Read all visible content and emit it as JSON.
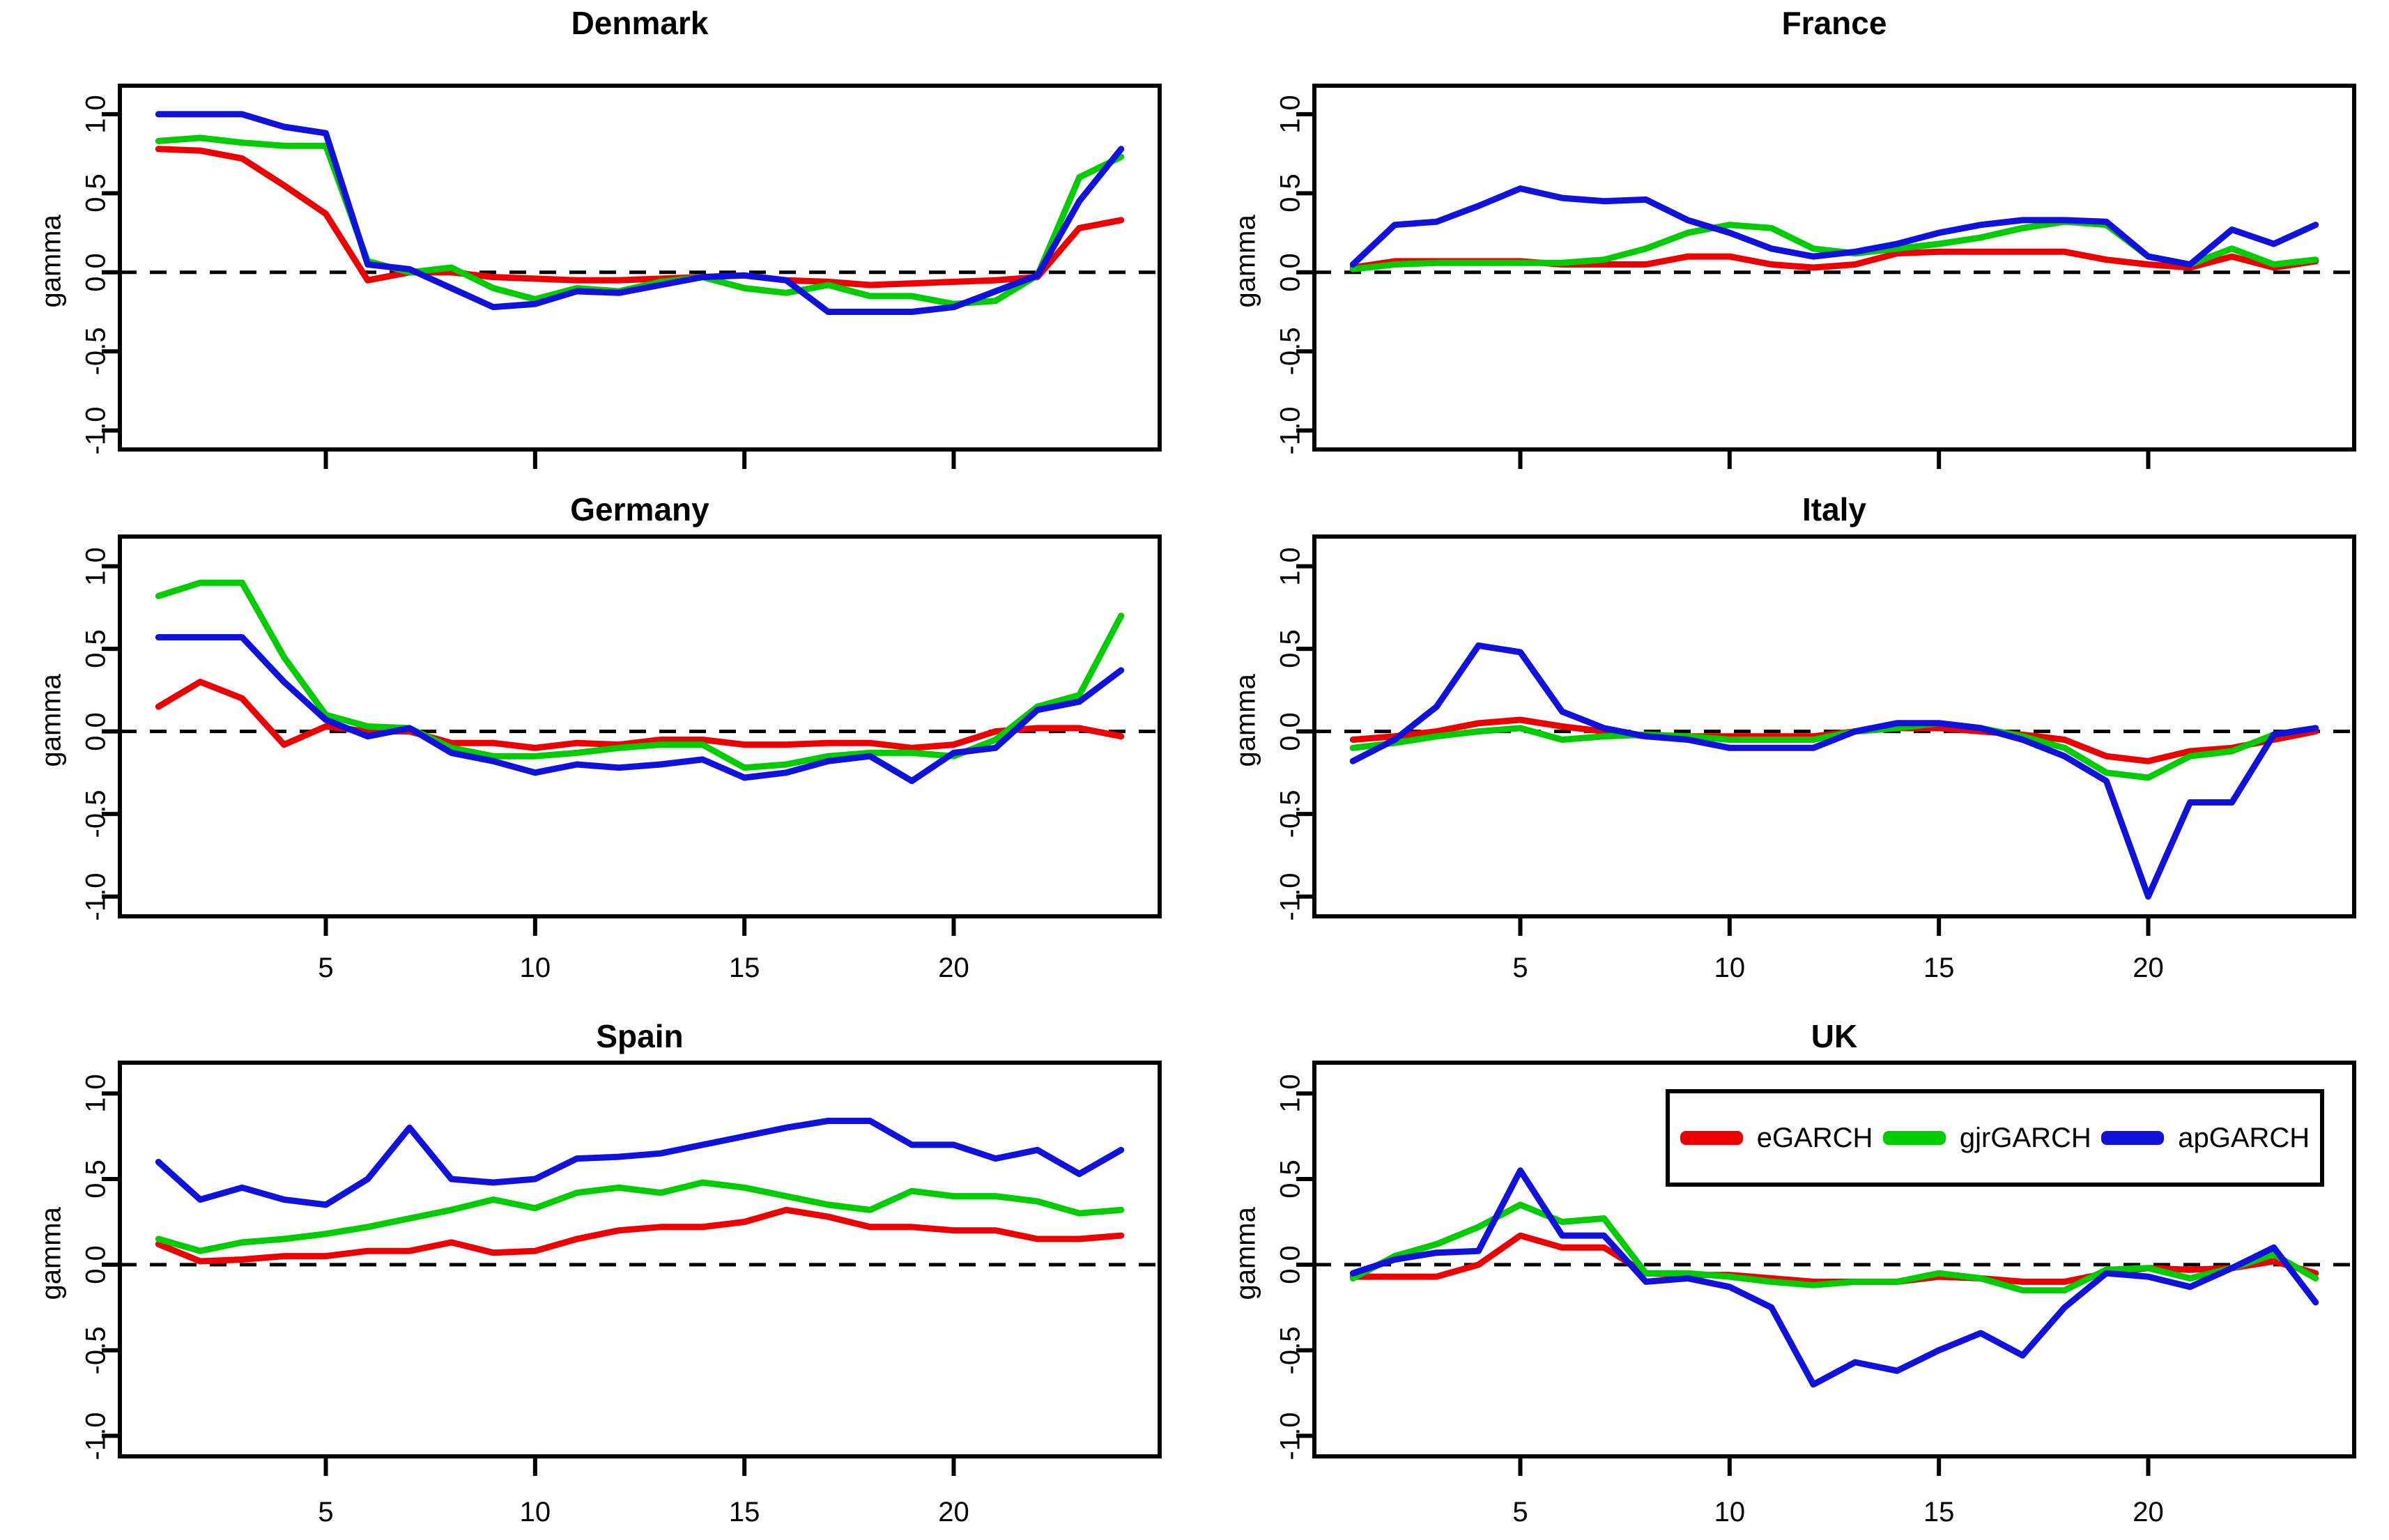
{
  "figure": {
    "ylabel": "gamma",
    "background": "#ffffff",
    "axis_color": "#000000",
    "zero_line_style": "dashed",
    "ytick_labels": [
      "1.0",
      "0.5",
      "0.0",
      "-0.5",
      "-1.0"
    ],
    "yticks": [
      1.0,
      0.5,
      0.0,
      -0.5,
      -1.0
    ],
    "xtick_labels": [
      "5",
      "10",
      "15",
      "20"
    ],
    "xticks": [
      5,
      10,
      15,
      20
    ],
    "colors": {
      "eGARCH": "#ee0000",
      "gjrGARCH": "#00cc00",
      "apGARCH": "#1111dd"
    },
    "legend": {
      "entries": [
        "eGARCH",
        "gjrGARCH",
        "apGARCH"
      ],
      "panel": "UK",
      "position": "top-right"
    }
  },
  "chart_data": [
    {
      "type": "line",
      "title": "Denmark",
      "x": [
        1,
        2,
        3,
        4,
        5,
        6,
        7,
        8,
        9,
        10,
        11,
        12,
        13,
        14,
        15,
        16,
        17,
        18,
        19,
        20,
        21,
        22,
        23,
        24
      ],
      "xlim": [
        1,
        24
      ],
      "ylim": [
        -1,
        1
      ],
      "zero_line": true,
      "x_axis_labels_visible": false,
      "series": [
        {
          "name": "eGARCH",
          "color": "#ee0000",
          "values": [
            0.78,
            0.77,
            0.72,
            0.55,
            0.37,
            -0.05,
            0.0,
            0.0,
            -0.03,
            -0.04,
            -0.05,
            -0.05,
            -0.04,
            -0.03,
            -0.02,
            -0.05,
            -0.06,
            -0.08,
            -0.07,
            -0.06,
            -0.05,
            -0.03,
            0.28,
            0.33
          ]
        },
        {
          "name": "gjrGARCH",
          "color": "#00cc00",
          "values": [
            0.83,
            0.85,
            0.82,
            0.8,
            0.8,
            0.07,
            0.0,
            0.03,
            -0.1,
            -0.17,
            -0.1,
            -0.12,
            -0.06,
            -0.03,
            -0.1,
            -0.13,
            -0.08,
            -0.15,
            -0.15,
            -0.2,
            -0.18,
            -0.02,
            0.6,
            0.73
          ]
        },
        {
          "name": "apGARCH",
          "color": "#1111dd",
          "values": [
            1.0,
            1.0,
            1.0,
            0.92,
            0.88,
            0.05,
            0.02,
            -0.1,
            -0.22,
            -0.2,
            -0.12,
            -0.13,
            -0.08,
            -0.03,
            -0.02,
            -0.05,
            -0.25,
            -0.25,
            -0.25,
            -0.22,
            -0.12,
            -0.02,
            0.45,
            0.78
          ]
        }
      ]
    },
    {
      "type": "line",
      "title": "France",
      "x": [
        1,
        2,
        3,
        4,
        5,
        6,
        7,
        8,
        9,
        10,
        11,
        12,
        13,
        14,
        15,
        16,
        17,
        18,
        19,
        20,
        21,
        22,
        23,
        24
      ],
      "xlim": [
        1,
        24
      ],
      "ylim": [
        -1,
        1
      ],
      "zero_line": true,
      "x_axis_labels_visible": false,
      "series": [
        {
          "name": "eGARCH",
          "color": "#ee0000",
          "values": [
            0.03,
            0.07,
            0.07,
            0.07,
            0.07,
            0.05,
            0.05,
            0.05,
            0.1,
            0.1,
            0.05,
            0.03,
            0.05,
            0.12,
            0.13,
            0.13,
            0.13,
            0.13,
            0.08,
            0.05,
            0.03,
            0.1,
            0.03,
            0.07
          ]
        },
        {
          "name": "gjrGARCH",
          "color": "#00cc00",
          "values": [
            0.02,
            0.05,
            0.06,
            0.06,
            0.06,
            0.06,
            0.08,
            0.15,
            0.25,
            0.3,
            0.28,
            0.15,
            0.12,
            0.15,
            0.18,
            0.22,
            0.28,
            0.32,
            0.3,
            0.1,
            0.05,
            0.15,
            0.05,
            0.08
          ]
        },
        {
          "name": "apGARCH",
          "color": "#1111dd",
          "values": [
            0.05,
            0.3,
            0.32,
            0.42,
            0.53,
            0.47,
            0.45,
            0.46,
            0.33,
            0.25,
            0.15,
            0.1,
            0.13,
            0.18,
            0.25,
            0.3,
            0.33,
            0.33,
            0.32,
            0.1,
            0.05,
            0.27,
            0.18,
            0.3
          ]
        }
      ]
    },
    {
      "type": "line",
      "title": "Germany",
      "x": [
        1,
        2,
        3,
        4,
        5,
        6,
        7,
        8,
        9,
        10,
        11,
        12,
        13,
        14,
        15,
        16,
        17,
        18,
        19,
        20,
        21,
        22,
        23,
        24
      ],
      "xlim": [
        1,
        24
      ],
      "ylim": [
        -1,
        1
      ],
      "zero_line": true,
      "x_axis_labels_visible": true,
      "series": [
        {
          "name": "eGARCH",
          "color": "#ee0000",
          "values": [
            0.15,
            0.3,
            0.2,
            -0.08,
            0.03,
            0.0,
            0.0,
            -0.07,
            -0.07,
            -0.1,
            -0.07,
            -0.08,
            -0.05,
            -0.05,
            -0.08,
            -0.08,
            -0.07,
            -0.07,
            -0.1,
            -0.08,
            0.0,
            0.02,
            0.02,
            -0.03
          ]
        },
        {
          "name": "gjrGARCH",
          "color": "#00cc00",
          "values": [
            0.82,
            0.9,
            0.9,
            0.45,
            0.1,
            0.03,
            0.02,
            -0.1,
            -0.15,
            -0.15,
            -0.13,
            -0.1,
            -0.08,
            -0.08,
            -0.22,
            -0.2,
            -0.15,
            -0.13,
            -0.13,
            -0.15,
            -0.05,
            0.15,
            0.22,
            0.7
          ]
        },
        {
          "name": "apGARCH",
          "color": "#1111dd",
          "values": [
            0.57,
            0.57,
            0.57,
            0.3,
            0.07,
            -0.03,
            0.02,
            -0.13,
            -0.18,
            -0.25,
            -0.2,
            -0.22,
            -0.2,
            -0.17,
            -0.28,
            -0.25,
            -0.18,
            -0.15,
            -0.3,
            -0.13,
            -0.1,
            0.13,
            0.18,
            0.37
          ]
        }
      ]
    },
    {
      "type": "line",
      "title": "Italy",
      "x": [
        1,
        2,
        3,
        4,
        5,
        6,
        7,
        8,
        9,
        10,
        11,
        12,
        13,
        14,
        15,
        16,
        17,
        18,
        19,
        20,
        21,
        22,
        23,
        24
      ],
      "xlim": [
        1,
        24
      ],
      "ylim": [
        -1,
        1
      ],
      "zero_line": true,
      "x_axis_labels_visible": true,
      "series": [
        {
          "name": "eGARCH",
          "color": "#ee0000",
          "values": [
            -0.05,
            -0.03,
            0.0,
            0.05,
            0.07,
            0.03,
            0.0,
            -0.03,
            -0.03,
            -0.03,
            -0.03,
            -0.03,
            0.0,
            0.02,
            0.02,
            0.0,
            -0.02,
            -0.05,
            -0.15,
            -0.18,
            -0.12,
            -0.1,
            -0.05,
            0.0
          ]
        },
        {
          "name": "gjrGARCH",
          "color": "#00cc00",
          "values": [
            -0.1,
            -0.07,
            -0.03,
            0.0,
            0.02,
            -0.05,
            -0.03,
            -0.02,
            -0.03,
            -0.05,
            -0.05,
            -0.05,
            0.0,
            0.02,
            0.05,
            0.02,
            -0.03,
            -0.1,
            -0.25,
            -0.28,
            -0.15,
            -0.12,
            -0.02,
            0.02
          ]
        },
        {
          "name": "apGARCH",
          "color": "#1111dd",
          "values": [
            -0.18,
            -0.05,
            0.15,
            0.52,
            0.48,
            0.12,
            0.02,
            -0.03,
            -0.05,
            -0.1,
            -0.1,
            -0.1,
            0.0,
            0.05,
            0.05,
            0.02,
            -0.05,
            -0.15,
            -0.3,
            -1.0,
            -0.43,
            -0.43,
            -0.02,
            0.02
          ]
        }
      ]
    },
    {
      "type": "line",
      "title": "Spain",
      "x": [
        1,
        2,
        3,
        4,
        5,
        6,
        7,
        8,
        9,
        10,
        11,
        12,
        13,
        14,
        15,
        16,
        17,
        18,
        19,
        20,
        21,
        22,
        23,
        24
      ],
      "xlim": [
        1,
        24
      ],
      "ylim": [
        -1,
        1
      ],
      "zero_line": true,
      "x_axis_labels_visible": true,
      "series": [
        {
          "name": "eGARCH",
          "color": "#ee0000",
          "values": [
            0.12,
            0.02,
            0.03,
            0.05,
            0.05,
            0.08,
            0.08,
            0.13,
            0.07,
            0.08,
            0.15,
            0.2,
            0.22,
            0.22,
            0.25,
            0.32,
            0.28,
            0.22,
            0.22,
            0.2,
            0.2,
            0.15,
            0.15,
            0.17
          ]
        },
        {
          "name": "gjrGARCH",
          "color": "#00cc00",
          "values": [
            0.15,
            0.08,
            0.13,
            0.15,
            0.18,
            0.22,
            0.27,
            0.32,
            0.38,
            0.33,
            0.42,
            0.45,
            0.42,
            0.48,
            0.45,
            0.4,
            0.35,
            0.32,
            0.43,
            0.4,
            0.4,
            0.37,
            0.3,
            0.32
          ]
        },
        {
          "name": "apGARCH",
          "color": "#1111dd",
          "values": [
            0.6,
            0.38,
            0.45,
            0.38,
            0.35,
            0.5,
            0.8,
            0.5,
            0.48,
            0.5,
            0.62,
            0.63,
            0.65,
            0.7,
            0.75,
            0.8,
            0.84,
            0.84,
            0.7,
            0.7,
            0.62,
            0.67,
            0.53,
            0.67
          ]
        }
      ]
    },
    {
      "type": "line",
      "title": "UK",
      "x": [
        1,
        2,
        3,
        4,
        5,
        6,
        7,
        8,
        9,
        10,
        11,
        12,
        13,
        14,
        15,
        16,
        17,
        18,
        19,
        20,
        21,
        22,
        23,
        24
      ],
      "xlim": [
        1,
        24
      ],
      "ylim": [
        -1,
        1
      ],
      "zero_line": true,
      "x_axis_labels_visible": true,
      "has_legend": true,
      "series": [
        {
          "name": "eGARCH",
          "color": "#ee0000",
          "values": [
            -0.07,
            -0.07,
            -0.07,
            0.0,
            0.17,
            0.1,
            0.1,
            -0.05,
            -0.06,
            -0.06,
            -0.08,
            -0.1,
            -0.1,
            -0.1,
            -0.07,
            -0.08,
            -0.1,
            -0.1,
            -0.05,
            -0.02,
            -0.03,
            -0.02,
            0.02,
            -0.05
          ]
        },
        {
          "name": "gjrGARCH",
          "color": "#00cc00",
          "values": [
            -0.08,
            0.05,
            0.12,
            0.22,
            0.35,
            0.25,
            0.27,
            -0.05,
            -0.05,
            -0.07,
            -0.1,
            -0.12,
            -0.1,
            -0.1,
            -0.05,
            -0.08,
            -0.15,
            -0.15,
            -0.03,
            -0.02,
            -0.08,
            -0.02,
            0.06,
            -0.08
          ]
        },
        {
          "name": "apGARCH",
          "color": "#1111dd",
          "values": [
            -0.05,
            0.03,
            0.07,
            0.08,
            0.55,
            0.17,
            0.17,
            -0.1,
            -0.08,
            -0.13,
            -0.25,
            -0.7,
            -0.57,
            -0.62,
            -0.5,
            -0.4,
            -0.53,
            -0.25,
            -0.05,
            -0.07,
            -0.13,
            -0.02,
            0.1,
            -0.22
          ]
        }
      ]
    }
  ]
}
